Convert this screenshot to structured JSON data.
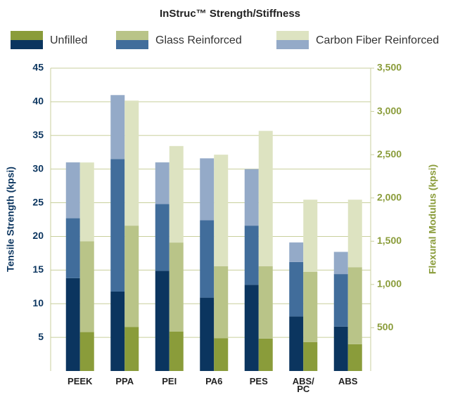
{
  "chart_data": {
    "type": "grouped_stacked_bar",
    "title": "InStruc™ Strength/Stiffness",
    "y_label": "Tensile Strength (kpsi)",
    "y2_label": "Flexural Modulus (kpsi)",
    "categories": [
      "PEEK",
      "PPA",
      "PEI",
      "PA6",
      "PES",
      "ABS/ PC",
      "ABS"
    ],
    "series": [
      {
        "name": "Unfilled",
        "color": "#0b355f",
        "color2": "#8a9c3a",
        "values": [
          13.8,
          11.8,
          14.9,
          10.9,
          12.8,
          8.1,
          6.6
        ],
        "values2": [
          450,
          510,
          455,
          380,
          375,
          335,
          310
        ]
      },
      {
        "name": "Glass Reinforced",
        "color": "#416d9b",
        "color2": "#b9c488",
        "values": [
          8.9,
          19.7,
          9.9,
          11.5,
          8.8,
          8.1,
          7.8
        ],
        "values2": [
          1050,
          1170,
          1030,
          830,
          835,
          810,
          890
        ]
      },
      {
        "name": "Carbon Fiber Reinforced",
        "color": "#94aac8",
        "color2": "#dde3c1",
        "values": [
          8.3,
          9.5,
          6.2,
          9.2,
          8.4,
          2.9,
          3.3
        ],
        "values2": [
          910,
          1445,
          1115,
          1290,
          1565,
          835,
          780
        ]
      }
    ],
    "ylim": [
      0,
      45
    ],
    "yticks": [
      5,
      10,
      15,
      20,
      25,
      30,
      35,
      40,
      45
    ],
    "y2lim": [
      0,
      3500
    ],
    "y2ticks": [
      500,
      {
        "value": 1000,
        "label": "1,000"
      },
      {
        "value": 1500,
        "label": "1,500"
      },
      {
        "value": 2000,
        "label": "2,000"
      },
      {
        "value": 2500,
        "label": "2,500"
      },
      {
        "value": 3000,
        "label": "3,000"
      },
      {
        "value": 3500,
        "label": "3,500"
      }
    ],
    "grid": true
  }
}
